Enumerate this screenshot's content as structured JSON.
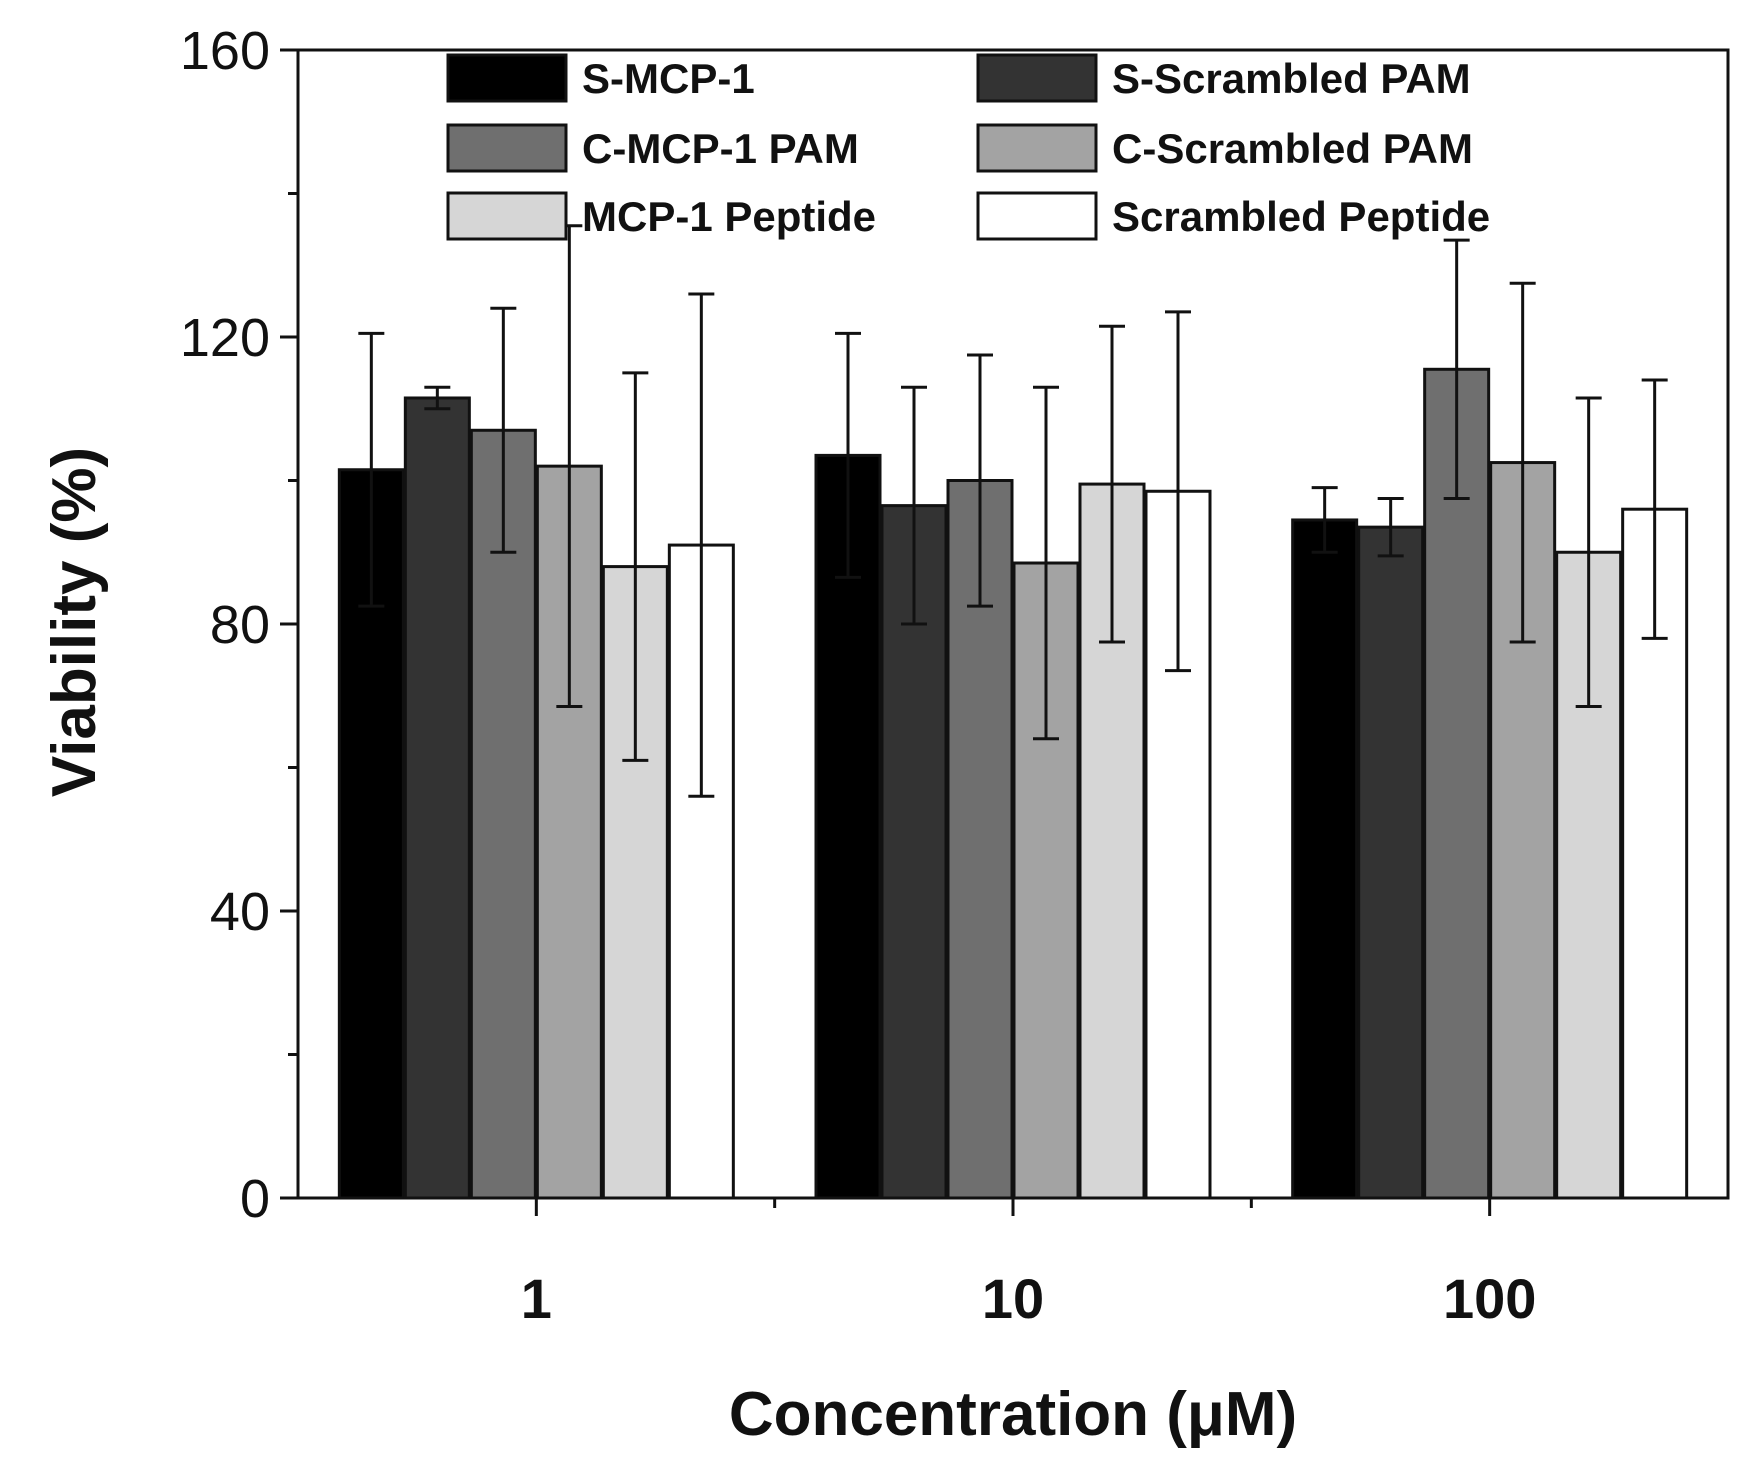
{
  "chart_data": {
    "type": "bar",
    "title": "",
    "xlabel": "Concentration (μM)",
    "ylabel": "Viability (%)",
    "categories": [
      "1",
      "10",
      "100"
    ],
    "ylim": [
      0,
      160
    ],
    "yticks": [
      0,
      40,
      80,
      120,
      160
    ],
    "yminor_step": 20,
    "grid": false,
    "legend_position": "top",
    "legend_columns": 2,
    "series": [
      {
        "name": "S-MCP-1",
        "color": "#000000",
        "values": [
          101.5,
          103.5,
          94.5
        ],
        "errors": [
          19,
          17,
          4.5
        ]
      },
      {
        "name": "S-Scrambled PAM",
        "color": "#333333",
        "values": [
          111.5,
          96.5,
          93.5
        ],
        "errors": [
          1.5,
          16.5,
          4
        ]
      },
      {
        "name": "C-MCP-1 PAM",
        "color": "#6f6f6f",
        "values": [
          107,
          100,
          115.5
        ],
        "errors": [
          17,
          17.5,
          18
        ]
      },
      {
        "name": "C-Scrambled PAM",
        "color": "#a3a3a3",
        "values": [
          102,
          88.5,
          102.5
        ],
        "errors": [
          33.5,
          24.5,
          25
        ]
      },
      {
        "name": "MCP-1 Peptide",
        "color": "#d6d6d6",
        "values": [
          88,
          99.5,
          90
        ],
        "errors": [
          27,
          22,
          21.5
        ]
      },
      {
        "name": "Scrambled Peptide",
        "color": "#ffffff",
        "values": [
          91,
          98.5,
          96
        ],
        "errors": [
          35,
          25,
          18
        ]
      }
    ]
  }
}
